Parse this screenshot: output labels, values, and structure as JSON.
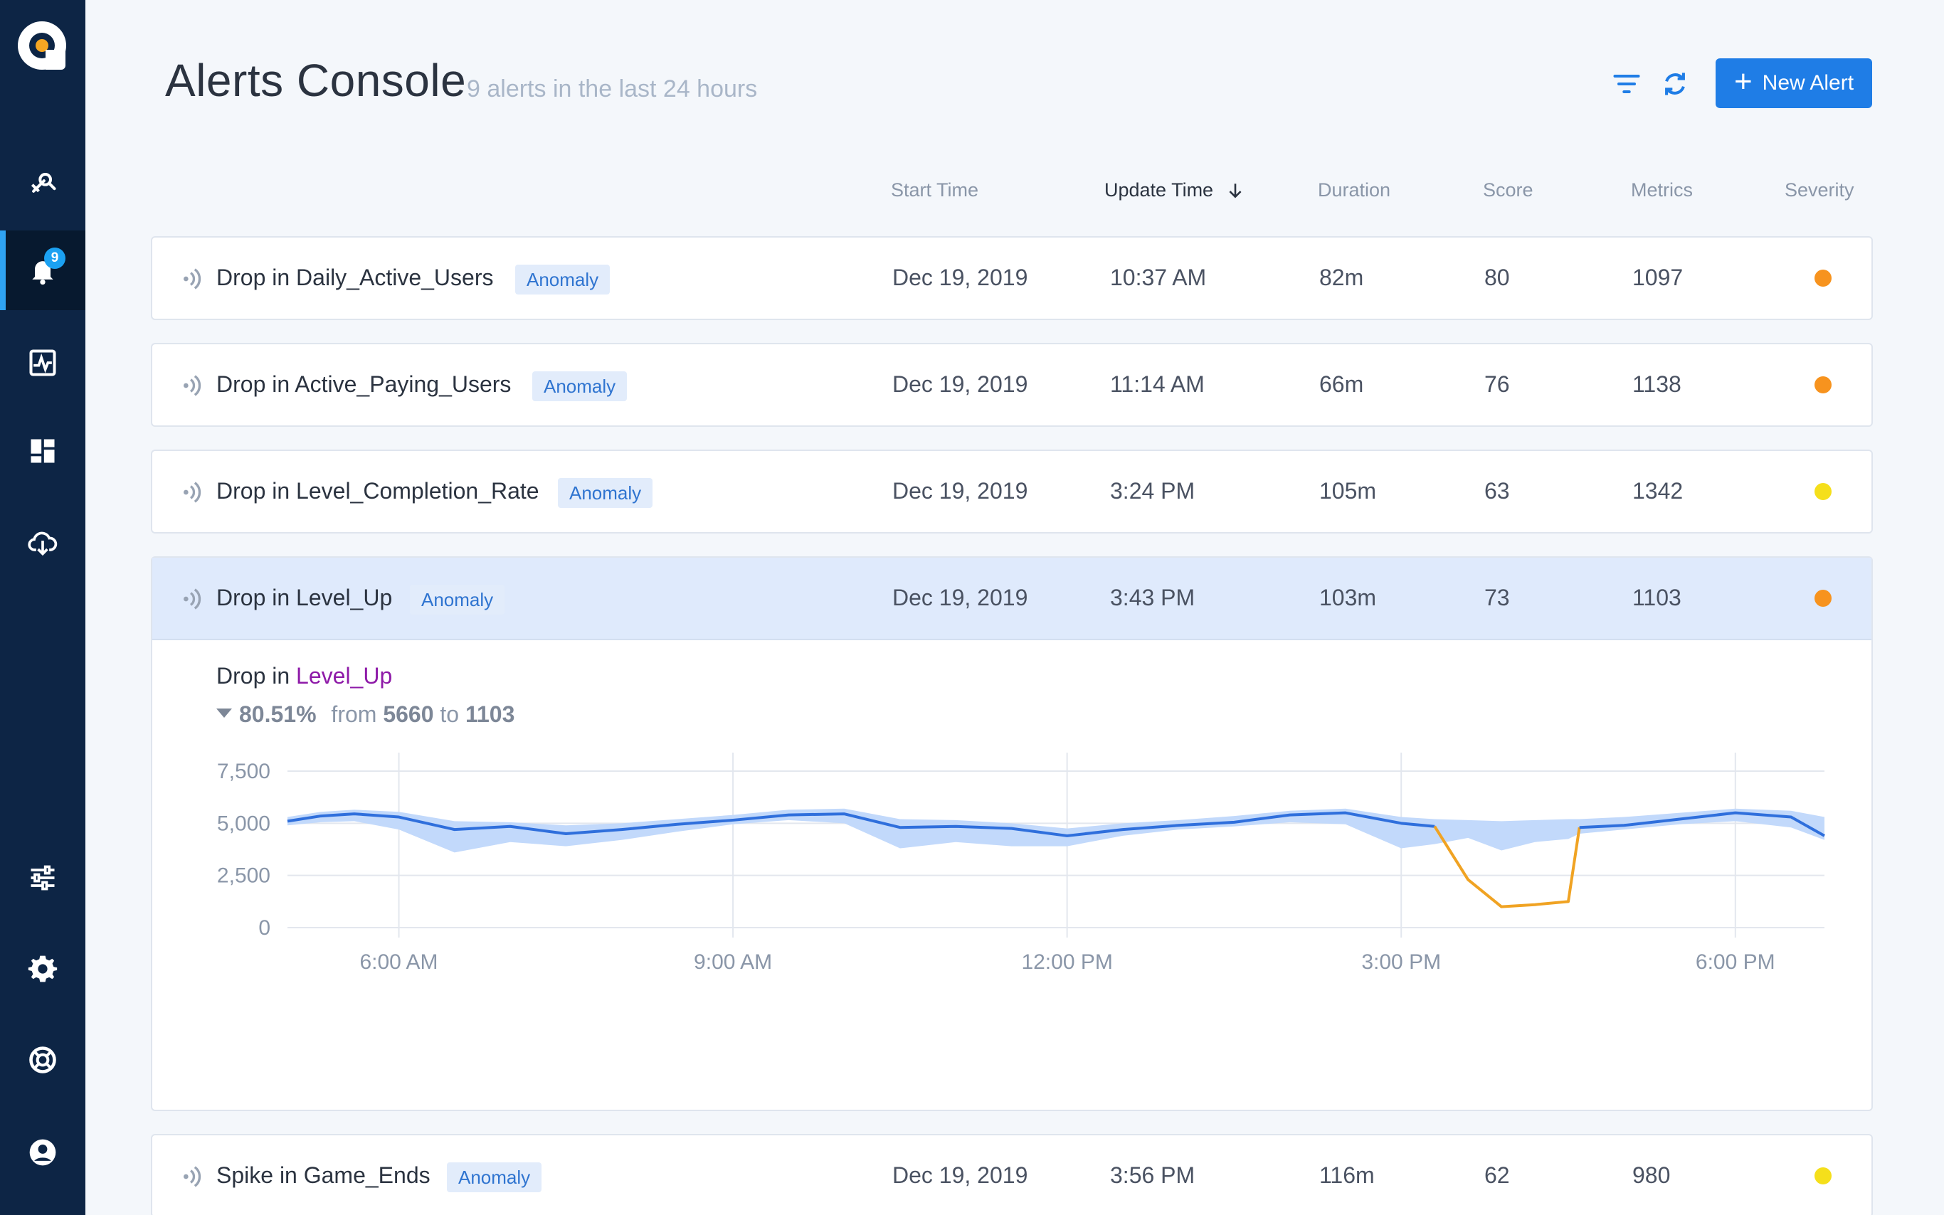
{
  "sidebar": {
    "badge_count": "9",
    "items": [
      {
        "name": "explore",
        "icon": "rocket-icon"
      },
      {
        "name": "alerts",
        "icon": "bell-icon",
        "active": true
      },
      {
        "name": "metrics",
        "icon": "pulse-chart-icon"
      },
      {
        "name": "dashboards",
        "icon": "dashboard-icon"
      },
      {
        "name": "data-sources",
        "icon": "cloud-download-icon"
      },
      {
        "name": "preferences",
        "icon": "sliders-icon"
      },
      {
        "name": "settings",
        "icon": "gear-icon"
      },
      {
        "name": "help",
        "icon": "lifebuoy-icon"
      },
      {
        "name": "account",
        "icon": "user-circle-icon"
      }
    ]
  },
  "header": {
    "title": "Alerts Console",
    "subtitle": "9 alerts in the last 24 hours",
    "new_alert_label": "New Alert"
  },
  "columns": {
    "start_time": "Start Time",
    "update_time": "Update Time",
    "duration": "Duration",
    "score": "Score",
    "metrics": "Metrics",
    "severity": "Severity"
  },
  "colors": {
    "accent": "#1f7de6",
    "severity_orange": "#f7931e",
    "severity_yellow": "#f5df1b",
    "series_line": "#2f6fdc",
    "band": "#c2d9fb",
    "anomaly_line": "#f0a323",
    "metric_link": "#8e1aa8"
  },
  "alerts": [
    {
      "title": "Drop in Daily_Active_Users",
      "tag": "Anomaly",
      "start": "Dec 19, 2019",
      "update": "10:37 AM",
      "duration": "82m",
      "score": "80",
      "metrics": "1097",
      "severity": "orange"
    },
    {
      "title": "Drop in Active_Paying_Users",
      "tag": "Anomaly",
      "start": "Dec 19, 2019",
      "update": "11:14 AM",
      "duration": "66m",
      "score": "76",
      "metrics": "1138",
      "severity": "orange"
    },
    {
      "title": "Drop in Level_Completion_Rate",
      "tag": "Anomaly",
      "start": "Dec 19, 2019",
      "update": "3:24 PM",
      "duration": "105m",
      "score": "63",
      "metrics": "1342",
      "severity": "yellow"
    },
    {
      "title": "Drop in Level_Up",
      "tag": "Anomaly",
      "start": "Dec 19, 2019",
      "update": "3:43 PM",
      "duration": "103m",
      "score": "73",
      "metrics": "1103",
      "severity": "orange",
      "expanded": true
    },
    {
      "title": "Spike in Game_Ends",
      "tag": "Anomaly",
      "start": "Dec 19, 2019",
      "update": "3:56 PM",
      "duration": "116m",
      "score": "62",
      "metrics": "980",
      "severity": "yellow"
    }
  ],
  "detail": {
    "prefix": "Drop in ",
    "metric": "Level_Up",
    "change_pct": "80.51%",
    "from_word": "from",
    "from_value": "5660",
    "to_word": "to",
    "to_value": "1103"
  },
  "chart_data": {
    "type": "line",
    "ylim": [
      0,
      7500
    ],
    "yticks": [
      "7,500",
      "5,000",
      "2,500",
      "0"
    ],
    "xticks": [
      "6:00 AM",
      "9:00 AM",
      "12:00 PM",
      "3:00 PM",
      "6:00 PM"
    ],
    "xlim_hours": [
      5.0,
      18.8
    ],
    "x_hours": [
      5.0,
      5.3,
      5.6,
      6.0,
      6.5,
      7.0,
      7.5,
      8.0,
      8.5,
      9.0,
      9.5,
      10.0,
      10.5,
      11.0,
      11.5,
      12.0,
      12.5,
      13.0,
      13.5,
      14.0,
      14.5,
      15.0,
      15.3,
      15.6,
      15.9,
      16.2,
      16.5,
      16.6,
      17.0,
      17.5,
      18.0,
      18.5,
      18.8
    ],
    "series": [
      {
        "values": [
          5100,
          5350,
          5450,
          5300,
          4700,
          4850,
          4500,
          4700,
          4950,
          5150,
          5400,
          5450,
          4800,
          4850,
          4750,
          4400,
          4700,
          4900,
          5050,
          5400,
          5500,
          5000,
          4850,
          2300,
          1000,
          1100,
          1250,
          4800,
          4900,
          5200,
          5500,
          5300,
          4400
        ]
      }
    ],
    "expected_band": {
      "upper": [
        5300,
        5550,
        5650,
        5550,
        5100,
        5050,
        4900,
        5000,
        5200,
        5400,
        5650,
        5700,
        5200,
        5150,
        5000,
        4750,
        5000,
        5150,
        5350,
        5600,
        5700,
        5300,
        5200,
        5150,
        5100,
        5150,
        5200,
        5200,
        5300,
        5500,
        5700,
        5600,
        5300
      ],
      "lower": [
        4900,
        5050,
        5100,
        4700,
        3600,
        4100,
        3900,
        4200,
        4600,
        4950,
        5150,
        5000,
        3800,
        4100,
        3900,
        3900,
        4400,
        4700,
        4850,
        5050,
        4950,
        3800,
        4000,
        4300,
        3700,
        4100,
        4250,
        4500,
        4700,
        4950,
        5100,
        4800,
        4200
      ]
    },
    "anomaly_range_hours": [
      15.27,
      16.6
    ]
  }
}
